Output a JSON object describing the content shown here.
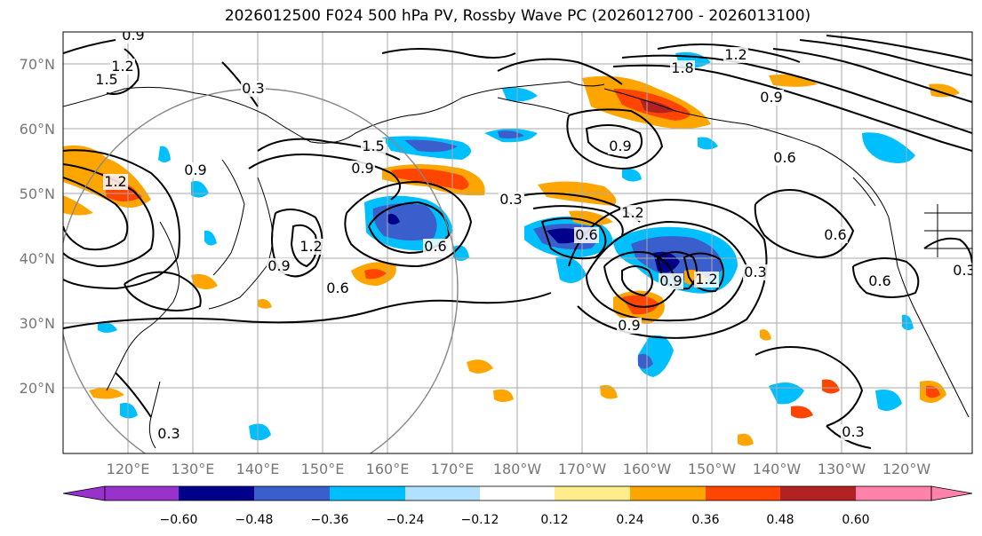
{
  "title": "2026012500 F024 500 hPa PV, Rossby Wave PC (2026012700 - 2026013100)",
  "lat_labels": [
    "70°N",
    "60°N",
    "50°N",
    "40°N",
    "30°N",
    "20°N"
  ],
  "lon_labels": [
    "120°E",
    "130°E",
    "140°E",
    "150°E",
    "160°E",
    "170°E",
    "180°W",
    "170°W",
    "160°W",
    "150°W",
    "140°W",
    "130°W",
    "120°W"
  ],
  "colorbar": {
    "ticks": [
      "−0.60",
      "−0.48",
      "−0.36",
      "−0.24",
      "−0.12",
      "0.12",
      "0.24",
      "0.36",
      "0.48",
      "0.60"
    ],
    "colors": [
      "#9932cc",
      "#00008b",
      "#3a5fcd",
      "#00bfff",
      "#b0e2ff",
      "#ffffff",
      "#ffec8b",
      "#ffa500",
      "#ff4500",
      "#b22222",
      "#ff82ab"
    ]
  },
  "contour_labels": [
    "0.9",
    "1.2",
    "1.5",
    "1.2",
    "0.3",
    "0.9",
    "1.5",
    "0.9",
    "0.6",
    "1.2",
    "0.9",
    "0.6",
    "0.3",
    "1.8",
    "1.2",
    "0.9",
    "0.9",
    "0.6",
    "1.2",
    "0.6",
    "0.9",
    "1.2",
    "0.3",
    "0.9",
    "0.6",
    "0.3",
    "0.6",
    "0.3",
    "0.3"
  ]
}
